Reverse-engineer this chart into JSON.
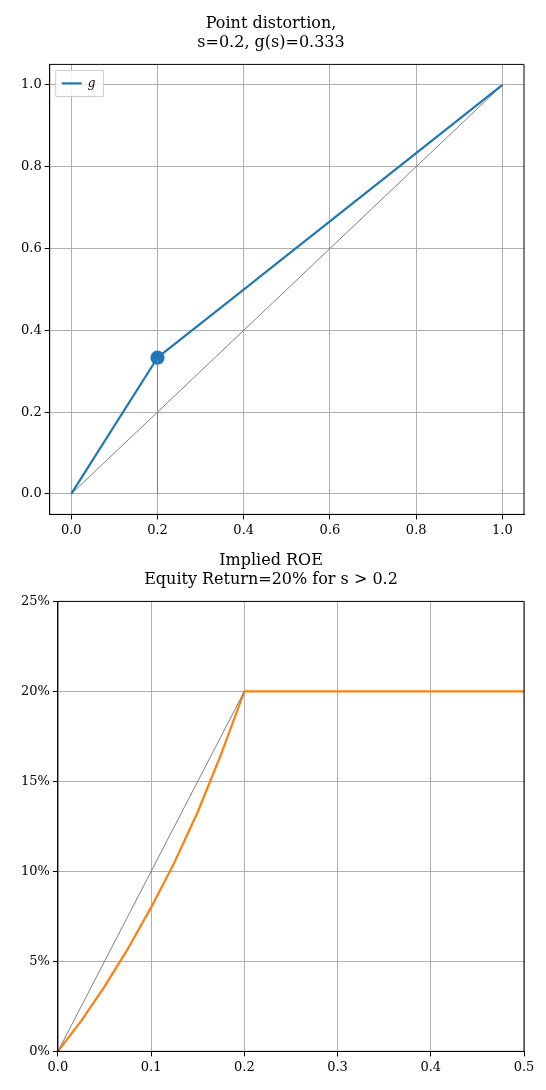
{
  "chart_data": [
    {
      "type": "line",
      "title": "Point distortion,\ns=0.2, g(s)=0.333",
      "xlim": [
        -0.05,
        1.05
      ],
      "ylim": [
        -0.05,
        1.05
      ],
      "xticks": [
        {
          "value": 0,
          "label": "0.0"
        },
        {
          "value": 0.2,
          "label": "0.2"
        },
        {
          "value": 0.4,
          "label": "0.4"
        },
        {
          "value": 0.6,
          "label": "0.6"
        },
        {
          "value": 0.8,
          "label": "0.8"
        },
        {
          "value": 1,
          "label": "1.0"
        }
      ],
      "yticks": [
        {
          "value": 0,
          "label": "0.0"
        },
        {
          "value": 0.2,
          "label": "0.2"
        },
        {
          "value": 0.4,
          "label": "0.4"
        },
        {
          "value": 0.6,
          "label": "0.6"
        },
        {
          "value": 0.8,
          "label": "0.8"
        },
        {
          "value": 1,
          "label": "1.0"
        }
      ],
      "grid": true,
      "legend": "top left",
      "series": [
        {
          "type": "line",
          "name": "g",
          "color": "#1f77b4",
          "x": [
            0,
            0.2,
            1
          ],
          "values": [
            0,
            0.333,
            1
          ]
        },
        {
          "type": "line",
          "color": "#808080",
          "x": [
            0,
            1
          ],
          "values": [
            0,
            1
          ]
        },
        {
          "type": "line",
          "color": "#808080",
          "x": [
            0.2,
            0.2
          ],
          "values": [
            0,
            0.333
          ]
        },
        {
          "type": "scatter",
          "color": "#1f77b4",
          "marker": "circle",
          "x": [
            0.2
          ],
          "values": [
            0.333
          ]
        }
      ]
    },
    {
      "type": "line",
      "title": "Implied ROE\nEquity Return=20% for s > 0.2",
      "xlim": [
        0,
        0.5
      ],
      "ylim": [
        0,
        0.25
      ],
      "xticks": [
        {
          "value": 0,
          "label": "0.0"
        },
        {
          "value": 0.1,
          "label": "0.1"
        },
        {
          "value": 0.2,
          "label": "0.2"
        },
        {
          "value": 0.3,
          "label": "0.3"
        },
        {
          "value": 0.4,
          "label": "0.4"
        },
        {
          "value": 0.5,
          "label": "0.5"
        }
      ],
      "yticks": [
        {
          "value": 0,
          "label": "0%"
        },
        {
          "value": 0.05,
          "label": "5%"
        },
        {
          "value": 0.1,
          "label": "10%"
        },
        {
          "value": 0.15,
          "label": "15%"
        },
        {
          "value": 0.2,
          "label": "20%"
        },
        {
          "value": 0.25,
          "label": "25%"
        }
      ],
      "grid": true,
      "series": [
        {
          "type": "line",
          "color": "#808080",
          "x": [
            0,
            0.2
          ],
          "values": [
            0,
            0.2
          ]
        },
        {
          "type": "line",
          "color": "#ff7f0e",
          "x": [
            0,
            0.025,
            0.05,
            0.075,
            0.1,
            0.125,
            0.15,
            0.175,
            0.2,
            0.5
          ],
          "values": [
            0,
            0.017,
            0.036,
            0.057,
            0.08,
            0.105,
            0.133,
            0.165,
            0.2,
            0.2
          ]
        }
      ]
    }
  ]
}
